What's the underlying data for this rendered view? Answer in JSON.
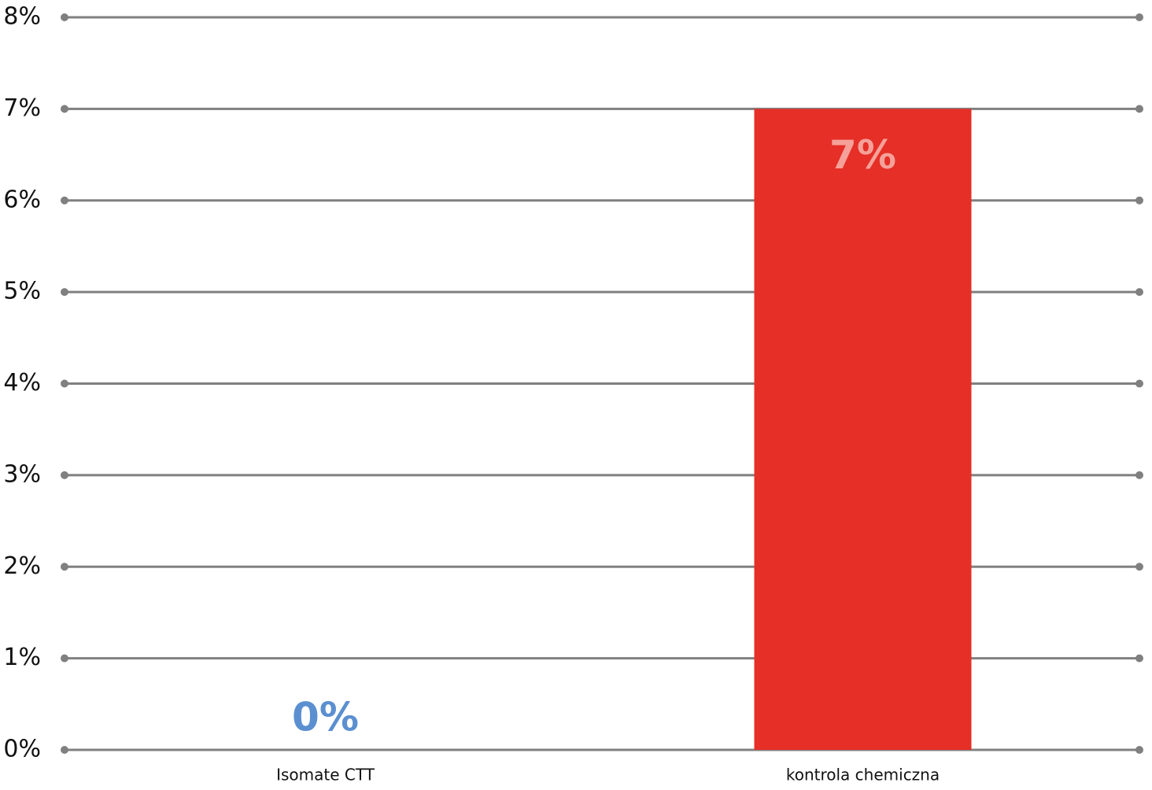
{
  "chart_data": {
    "type": "bar",
    "categories": [
      "Isomate CTT",
      "kontrola chemiczna"
    ],
    "values": [
      0,
      7
    ],
    "value_labels": [
      "0%",
      "7%"
    ],
    "colors": [
      "#5b8fd0",
      "#e52f27"
    ],
    "value_label_colors": [
      "#5b8fd0",
      "#f5a199"
    ],
    "ylim": [
      0,
      8
    ],
    "yticks": [
      {
        "value": 0,
        "label": "0%"
      },
      {
        "value": 1,
        "label": "1%"
      },
      {
        "value": 2,
        "label": "2%"
      },
      {
        "value": 3,
        "label": "3%"
      },
      {
        "value": 4,
        "label": "4%"
      },
      {
        "value": 5,
        "label": "5%"
      },
      {
        "value": 6,
        "label": "6%"
      },
      {
        "value": 7,
        "label": "7%"
      },
      {
        "value": 8,
        "label": "8%"
      }
    ],
    "grid": true
  }
}
